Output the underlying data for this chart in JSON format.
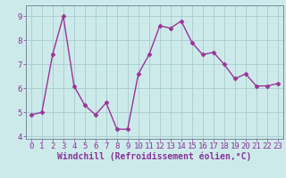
{
  "x": [
    0,
    1,
    2,
    3,
    4,
    5,
    6,
    7,
    8,
    9,
    10,
    11,
    12,
    13,
    14,
    15,
    16,
    17,
    18,
    19,
    20,
    21,
    22,
    23
  ],
  "y": [
    4.9,
    5.0,
    7.4,
    9.0,
    6.1,
    5.3,
    4.9,
    5.4,
    4.3,
    4.3,
    6.6,
    7.4,
    8.6,
    8.5,
    8.8,
    7.9,
    7.4,
    7.5,
    7.0,
    6.4,
    6.6,
    6.1,
    6.1,
    6.2
  ],
  "line_color": "#993399",
  "marker": "D",
  "marker_size": 2.5,
  "linewidth": 1.0,
  "xlabel": "Windchill (Refroidissement éolien,°C)",
  "xlim": [
    -0.5,
    23.5
  ],
  "ylim": [
    3.9,
    9.45
  ],
  "yticks": [
    4,
    5,
    6,
    7,
    8,
    9
  ],
  "xticks": [
    0,
    1,
    2,
    3,
    4,
    5,
    6,
    7,
    8,
    9,
    10,
    11,
    12,
    13,
    14,
    15,
    16,
    17,
    18,
    19,
    20,
    21,
    22,
    23
  ],
  "bg_color": "#cdeaea",
  "grid_color": "#aacccc",
  "text_color": "#883399",
  "tick_label_fontsize": 6.5,
  "xlabel_fontsize": 7.0
}
